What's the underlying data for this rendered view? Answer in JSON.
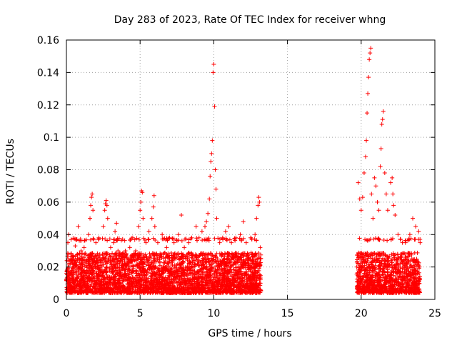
{
  "chart_data": {
    "type": "scatter",
    "title": "Day 283 of 2023, Rate Of TEC Index for receiver whng",
    "xlabel": "GPS time / hours",
    "ylabel": "ROTI / TECUs",
    "xlim": [
      0,
      25
    ],
    "ylim": [
      0,
      0.16
    ],
    "grid": true,
    "marker": "+",
    "x_ticks": [
      0,
      5,
      10,
      15,
      20,
      25
    ],
    "x_tick_labels": [
      "0",
      "5",
      "10",
      "15",
      "20",
      "25"
    ],
    "y_ticks": [
      0,
      0.02,
      0.04,
      0.06,
      0.08,
      0.1,
      0.12,
      0.14,
      0.16
    ],
    "y_tick_labels": [
      "0",
      "0.02",
      "0.04",
      "0.06",
      "0.08",
      "0.1",
      "0.12",
      "0.14",
      "0.16"
    ],
    "series": [
      {
        "name": "ROTI",
        "color": "#ff0000",
        "data_gap_hours": [
          13.2,
          19.7
        ],
        "points": [
          [
            0.0,
            0.012
          ],
          [
            0.1,
            0.035
          ],
          [
            0.15,
            0.04
          ],
          [
            0.3,
            0.028
          ],
          [
            0.5,
            0.022
          ],
          [
            0.6,
            0.033
          ],
          [
            0.8,
            0.045
          ],
          [
            1.0,
            0.03
          ],
          [
            1.2,
            0.032
          ],
          [
            1.5,
            0.04
          ],
          [
            1.6,
            0.05
          ],
          [
            1.65,
            0.058
          ],
          [
            1.7,
            0.063
          ],
          [
            1.75,
            0.065
          ],
          [
            1.8,
            0.055
          ],
          [
            2.0,
            0.035
          ],
          [
            2.2,
            0.038
          ],
          [
            2.5,
            0.045
          ],
          [
            2.6,
            0.055
          ],
          [
            2.65,
            0.059
          ],
          [
            2.7,
            0.061
          ],
          [
            2.75,
            0.058
          ],
          [
            2.8,
            0.05
          ],
          [
            3.0,
            0.032
          ],
          [
            3.2,
            0.035
          ],
          [
            3.3,
            0.042
          ],
          [
            3.4,
            0.047
          ],
          [
            3.5,
            0.03
          ],
          [
            3.8,
            0.028
          ],
          [
            4.0,
            0.03
          ],
          [
            4.3,
            0.032
          ],
          [
            4.5,
            0.038
          ],
          [
            4.7,
            0.03
          ],
          [
            4.9,
            0.045
          ],
          [
            5.0,
            0.055
          ],
          [
            5.05,
            0.06
          ],
          [
            5.1,
            0.067
          ],
          [
            5.15,
            0.066
          ],
          [
            5.2,
            0.05
          ],
          [
            5.4,
            0.035
          ],
          [
            5.6,
            0.042
          ],
          [
            5.8,
            0.05
          ],
          [
            5.9,
            0.057
          ],
          [
            5.95,
            0.064
          ],
          [
            6.0,
            0.045
          ],
          [
            6.2,
            0.035
          ],
          [
            6.5,
            0.04
          ],
          [
            6.8,
            0.032
          ],
          [
            7.0,
            0.038
          ],
          [
            7.3,
            0.035
          ],
          [
            7.6,
            0.04
          ],
          [
            7.8,
            0.052
          ],
          [
            8.0,
            0.032
          ],
          [
            8.3,
            0.035
          ],
          [
            8.5,
            0.038
          ],
          [
            8.8,
            0.045
          ],
          [
            9.0,
            0.038
          ],
          [
            9.2,
            0.042
          ],
          [
            9.4,
            0.045
          ],
          [
            9.5,
            0.048
          ],
          [
            9.6,
            0.053
          ],
          [
            9.7,
            0.062
          ],
          [
            9.75,
            0.076
          ],
          [
            9.8,
            0.085
          ],
          [
            9.85,
            0.09
          ],
          [
            9.9,
            0.098
          ],
          [
            9.95,
            0.14
          ],
          [
            10.0,
            0.145
          ],
          [
            10.05,
            0.119
          ],
          [
            10.1,
            0.08
          ],
          [
            10.15,
            0.068
          ],
          [
            10.2,
            0.05
          ],
          [
            10.4,
            0.035
          ],
          [
            10.6,
            0.038
          ],
          [
            10.8,
            0.042
          ],
          [
            11.0,
            0.045
          ],
          [
            11.2,
            0.035
          ],
          [
            11.5,
            0.038
          ],
          [
            11.8,
            0.04
          ],
          [
            12.0,
            0.048
          ],
          [
            12.2,
            0.035
          ],
          [
            12.5,
            0.038
          ],
          [
            12.8,
            0.04
          ],
          [
            12.9,
            0.05
          ],
          [
            13.0,
            0.058
          ],
          [
            13.05,
            0.063
          ],
          [
            13.1,
            0.06
          ],
          [
            13.15,
            0.032
          ],
          [
            19.7,
            0.02
          ],
          [
            19.8,
            0.072
          ],
          [
            19.9,
            0.062
          ],
          [
            20.0,
            0.055
          ],
          [
            20.1,
            0.063
          ],
          [
            20.2,
            0.078
          ],
          [
            20.3,
            0.088
          ],
          [
            20.35,
            0.098
          ],
          [
            20.4,
            0.115
          ],
          [
            20.45,
            0.127
          ],
          [
            20.5,
            0.137
          ],
          [
            20.55,
            0.148
          ],
          [
            20.6,
            0.152
          ],
          [
            20.65,
            0.155
          ],
          [
            20.7,
            0.065
          ],
          [
            20.8,
            0.05
          ],
          [
            20.9,
            0.075
          ],
          [
            21.0,
            0.07
          ],
          [
            21.1,
            0.06
          ],
          [
            21.2,
            0.055
          ],
          [
            21.3,
            0.082
          ],
          [
            21.35,
            0.093
          ],
          [
            21.4,
            0.108
          ],
          [
            21.45,
            0.111
          ],
          [
            21.5,
            0.116
          ],
          [
            21.6,
            0.078
          ],
          [
            21.7,
            0.065
          ],
          [
            21.8,
            0.055
          ],
          [
            22.0,
            0.072
          ],
          [
            22.1,
            0.075
          ],
          [
            22.15,
            0.065
          ],
          [
            22.2,
            0.058
          ],
          [
            22.3,
            0.052
          ],
          [
            22.5,
            0.04
          ],
          [
            22.8,
            0.035
          ],
          [
            23.0,
            0.035
          ],
          [
            23.3,
            0.04
          ],
          [
            23.5,
            0.05
          ],
          [
            23.7,
            0.045
          ],
          [
            23.9,
            0.042
          ],
          [
            24.0,
            0.035
          ]
        ],
        "dense_band": {
          "note": "continuous cloud of points between these ROTI values over covered hours",
          "segments": [
            {
              "x_from": 0.0,
              "x_to": 13.2,
              "y_min": 0.004,
              "y_max": 0.03
            },
            {
              "x_from": 19.7,
              "x_to": 24.0,
              "y_min": 0.004,
              "y_max": 0.03
            }
          ]
        }
      }
    ]
  }
}
